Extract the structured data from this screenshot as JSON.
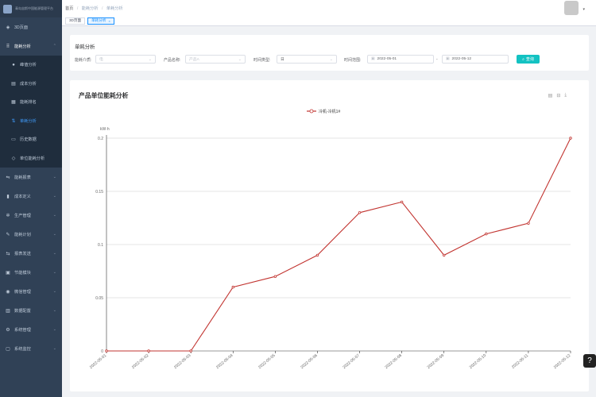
{
  "app": {
    "logo_text": "青岛宙斯中国能源管理平台"
  },
  "sidebar": {
    "items": [
      {
        "label": "3D页面",
        "icon": "cube-icon"
      },
      {
        "label": "能耗分析",
        "icon": "grid-icon"
      },
      {
        "label": "峰值分析",
        "icon": "gauge-icon"
      },
      {
        "label": "成本分析",
        "icon": "document-icon"
      },
      {
        "label": "能耗排名",
        "icon": "list-icon"
      },
      {
        "label": "单耗分析",
        "icon": "chart-icon"
      },
      {
        "label": "历史数据",
        "icon": "history-icon"
      },
      {
        "label": "单位能耗分析",
        "icon": "analysis-icon"
      },
      {
        "label": "能耗报表",
        "icon": "report-icon"
      },
      {
        "label": "成本定义",
        "icon": "cost-icon"
      },
      {
        "label": "生产管理",
        "icon": "production-icon"
      },
      {
        "label": "能耗计划",
        "icon": "plan-icon"
      },
      {
        "label": "报表发送",
        "icon": "send-icon"
      },
      {
        "label": "节能模块",
        "icon": "lock-icon"
      },
      {
        "label": "微信管理",
        "icon": "wechat-icon"
      },
      {
        "label": "数据配置",
        "icon": "database-icon"
      },
      {
        "label": "系统管理",
        "icon": "gear-icon"
      },
      {
        "label": "系统监控",
        "icon": "monitor-icon"
      }
    ]
  },
  "breadcrumb": {
    "home": "首页",
    "level1": "能耗分析",
    "level2": "单耗分析"
  },
  "tags": [
    {
      "label": "3D页面"
    },
    {
      "label": "单耗分析"
    }
  ],
  "filters": {
    "panel_title": "单耗分析",
    "energy_type_label": "能耗介质:",
    "energy_type_value": "电",
    "product_label": "产品名称:",
    "product_value": "产品A",
    "time_type_label": "时间类型:",
    "time_type_value": "日",
    "range_label": "时间范围:",
    "start_date": "2022-05-01",
    "end_date": "2022-05-12",
    "range_separator": "-",
    "query_label": "查询"
  },
  "chart_panel": {
    "title": "产品单位能耗分析"
  },
  "chart_data": {
    "type": "line",
    "ylabel": "kW·h",
    "ylim": [
      0,
      0.2
    ],
    "yticks": [
      0,
      0.05,
      0.1,
      0.15,
      0.2
    ],
    "ytick_labels": [
      "0",
      "0.05",
      "0.1",
      "0.15",
      "0.2"
    ],
    "categories": [
      "2022-05-01",
      "2022-05-02",
      "2022-05-03",
      "2022-05-04",
      "2022-05-05",
      "2022-05-06",
      "2022-05-07",
      "2022-05-08",
      "2022-05-09",
      "2022-05-10",
      "2022-05-11",
      "2022-05-12"
    ],
    "series": [
      {
        "name": "冷机-冷机1#",
        "values": [
          0,
          0,
          0,
          0.06,
          0.07,
          0.09,
          0.13,
          0.14,
          0.09,
          0.11,
          0.12,
          0.2
        ],
        "color": "#c23531"
      }
    ],
    "grid": true,
    "legend": "top-center"
  },
  "help": {
    "label": "?"
  }
}
